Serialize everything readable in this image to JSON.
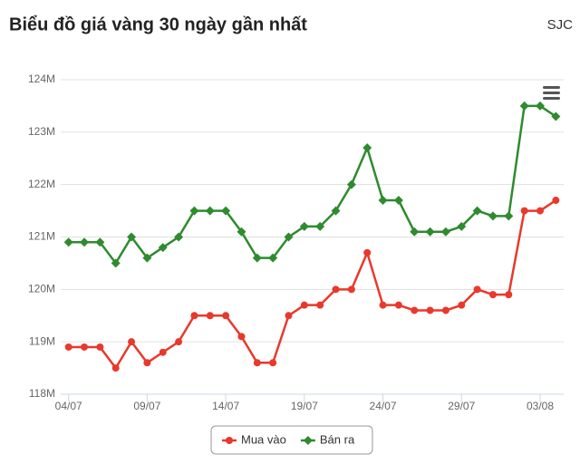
{
  "chart_data": {
    "type": "line",
    "title": "Biểu đồ giá vàng 30 ngày gần nhất",
    "subtitle": "SJC",
    "categories": [
      "04/07",
      null,
      null,
      null,
      null,
      "09/07",
      null,
      null,
      null,
      null,
      "14/07",
      null,
      null,
      null,
      null,
      "19/07",
      null,
      null,
      null,
      null,
      "24/07",
      null,
      null,
      null,
      null,
      "29/07",
      null,
      null,
      null,
      null,
      "03/08",
      null
    ],
    "series": [
      {
        "name": "Mua vào",
        "color": "#e8392c",
        "values": [
          118900000,
          118900000,
          118900000,
          118500000,
          119000000,
          118600000,
          118800000,
          119000000,
          119500000,
          119500000,
          119500000,
          119100000,
          118600000,
          118600000,
          119500000,
          119700000,
          119700000,
          120000000,
          120000000,
          120700000,
          119700000,
          119700000,
          119600000,
          119600000,
          119600000,
          119700000,
          120000000,
          119900000,
          119900000,
          121500000,
          121500000,
          121700000
        ]
      },
      {
        "name": "Bán ra",
        "color": "#2e8b2e",
        "values": [
          120900000,
          120900000,
          120900000,
          120500000,
          121000000,
          120600000,
          120800000,
          121000000,
          121500000,
          121500000,
          121500000,
          121100000,
          120600000,
          120600000,
          121000000,
          121200000,
          121200000,
          121500000,
          122000000,
          122700000,
          121700000,
          121700000,
          121100000,
          121100000,
          121100000,
          121200000,
          121500000,
          121400000,
          121400000,
          123500000,
          123500000,
          123300000
        ]
      }
    ],
    "ylim": [
      118000000,
      124000000
    ],
    "yticks": [
      {
        "value": 118000000,
        "label": "118M"
      },
      {
        "value": 119000000,
        "label": "119M"
      },
      {
        "value": 120000000,
        "label": "120M"
      },
      {
        "value": 121000000,
        "label": "121M"
      },
      {
        "value": 122000000,
        "label": "122M"
      },
      {
        "value": 123000000,
        "label": "123M"
      },
      {
        "value": 124000000,
        "label": "124M"
      }
    ],
    "grid": true
  }
}
